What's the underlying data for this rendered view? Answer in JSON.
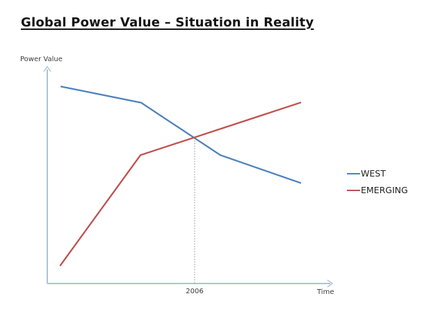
{
  "slide": {
    "title": "Global Power Value – Situation in Reality"
  },
  "chart": {
    "y_axis_label": "Power Value",
    "x_axis_label": "Time",
    "x_tick_label": "2006",
    "colors": {
      "west": "#4f81bd",
      "emerging": "#c0504d",
      "axis": "#aec3d8",
      "marker_line": "#8a8a8a",
      "small_text": "#3b3b3b"
    },
    "legend": [
      {
        "label": "WEST"
      },
      {
        "label": "EMERGING"
      }
    ]
  },
  "chart_data": {
    "type": "line",
    "title": "Global Power Value – Situation in Reality",
    "xlabel": "Time",
    "ylabel": "Power Value",
    "xlim": [
      0,
      1
    ],
    "ylim": [
      0,
      100
    ],
    "grid": false,
    "legend_position": "right",
    "axis_style": "arrows-no-ticks",
    "series": [
      {
        "name": "WEST",
        "color": "#4f81bd",
        "points": [
          {
            "x": 0.049,
            "y": 92
          },
          {
            "x": 0.329,
            "y": 84.5
          },
          {
            "x": 0.607,
            "y": 60
          },
          {
            "x": 0.888,
            "y": 47
          }
        ]
      },
      {
        "name": "EMERGING",
        "color": "#c0504d",
        "points": [
          {
            "x": 0.046,
            "y": 8.5
          },
          {
            "x": 0.327,
            "y": 60
          },
          {
            "x": 0.888,
            "y": 84.5
          }
        ]
      }
    ],
    "annotations": [
      {
        "type": "dotted-vertical-line",
        "x": 0.517,
        "y_top": 68,
        "label": "2006",
        "meaning": "crossing point of WEST and EMERGING"
      }
    ]
  }
}
